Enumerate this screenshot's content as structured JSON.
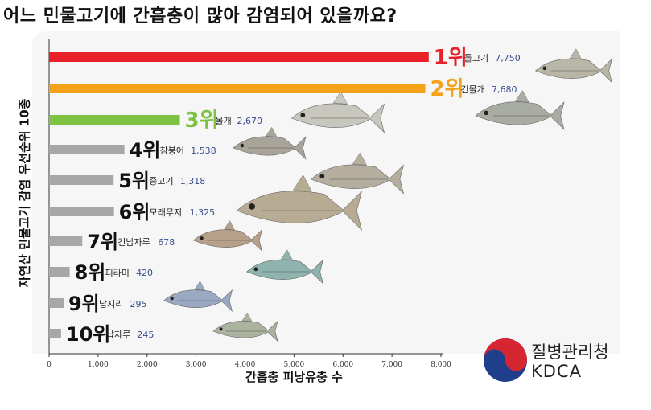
{
  "title": "어느 민물고기에 간흡충이 많아 감염되어 있을까요?",
  "logo": {
    "name_ko": "질병관리청",
    "name_en": "KDCA"
  },
  "colors": {
    "rank1": "#e8202a",
    "rank2": "#f5a21b",
    "rank3": "#7dc242",
    "other": "#a7a7a7",
    "count_text": "#3a4d8f"
  },
  "chart_data": {
    "type": "bar",
    "orientation": "horizontal",
    "title": "어느 민물고기에 간흡충이 많아 감염되어 있을까요?",
    "xlabel": "간흡충 피낭유충 수",
    "ylabel": "자연산 민물고기 감염 우선순위 10종",
    "xlim": [
      0,
      8000
    ],
    "xticks": [
      "0",
      "1,000",
      "2,000",
      "3,000",
      "4,000",
      "5,000",
      "6,000",
      "7,000",
      "8,000"
    ],
    "grid": false,
    "categories": [
      {
        "rank": "1위",
        "name": "돌고기",
        "value": 7750,
        "label": "7,750",
        "fish": "gudgeon-icon"
      },
      {
        "rank": "2위",
        "name": "긴몰개",
        "value": 7680,
        "label": "7,680",
        "fish": "long-minnow-icon"
      },
      {
        "rank": "3위",
        "name": "몰개",
        "value": 2670,
        "label": "2,670",
        "fish": "minnow-icon"
      },
      {
        "rank": "4위",
        "name": "참붕어",
        "value": 1538,
        "label": "1,538",
        "fish": "false-dace-icon"
      },
      {
        "rank": "5위",
        "name": "중고기",
        "value": 1318,
        "label": "1,318",
        "fish": "striped-gudgeon-icon"
      },
      {
        "rank": "6위",
        "name": "모래무지",
        "value": 1325,
        "label": "1,325",
        "fish": "sand-gudgeon-icon"
      },
      {
        "rank": "7위",
        "name": "긴납자루",
        "value": 678,
        "label": "678",
        "fish": "bitterling-icon"
      },
      {
        "rank": "8위",
        "name": "피라미",
        "value": 420,
        "label": "420",
        "fish": "pale-chub-icon"
      },
      {
        "rank": "9위",
        "name": "납지리",
        "value": 295,
        "label": "295",
        "fish": "flat-bitterling-icon"
      },
      {
        "rank": "10위",
        "name": "납자루",
        "value": 245,
        "label": "245",
        "fish": "crucian-bitterling-icon"
      }
    ]
  }
}
